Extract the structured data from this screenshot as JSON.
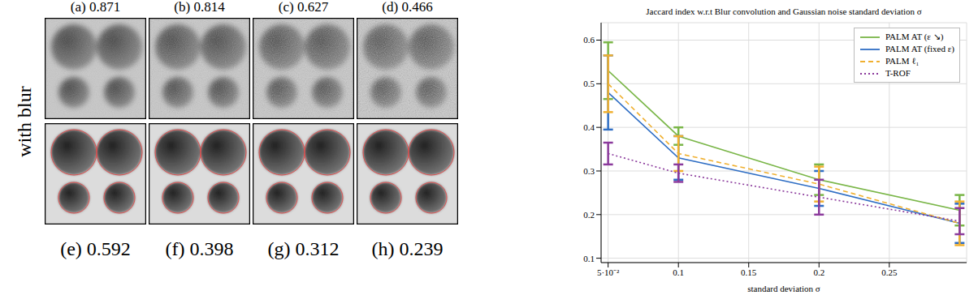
{
  "figure": {
    "top_labels": [
      "(a) 0.871",
      "(b) 0.814",
      "(c) 0.627",
      "(d) 0.466"
    ],
    "row_label": "with blur",
    "bottom_labels": [
      "(e) 0.592",
      "(f) 0.398",
      "(g) 0.312",
      "(h) 0.239"
    ]
  },
  "chart_data": {
    "type": "line",
    "title": "Jaccard index w.r.t Blur convolution and Gaussian noise standard deviation σ",
    "x_label": "standard deviation σ",
    "x": [
      0.05,
      0.1,
      0.2,
      0.3
    ],
    "xlim": [
      0.045,
      0.305
    ],
    "xticks": [
      {
        "value": 0.05,
        "label": "5·10⁻²"
      },
      0.1,
      0.15,
      0.2,
      0.25
    ],
    "ylim": [
      0.09,
      0.64
    ],
    "yticks": [
      0.1,
      0.2,
      0.3,
      0.4,
      0.5,
      0.6
    ],
    "grid": true,
    "legend": "upper right",
    "series": [
      {
        "name": "PALM AT (ε ↘)",
        "color": "#7ab648",
        "line_style": "solid",
        "values": [
          0.53,
          0.38,
          0.28,
          0.21
        ],
        "errors": [
          0.065,
          0.02,
          0.035,
          0.035
        ]
      },
      {
        "name": "PALM AT (fixed ε)",
        "color": "#2f6ec4",
        "line_style": "solid",
        "values": [
          0.48,
          0.33,
          0.26,
          0.18
        ],
        "errors": [
          0.085,
          0.05,
          0.04,
          0.045
        ]
      },
      {
        "name": "PALM ℓ₁",
        "color": "#f0b030",
        "line_style": "dashed",
        "values": [
          0.5,
          0.34,
          0.27,
          0.18
        ],
        "errors": [
          0.065,
          0.04,
          0.04,
          0.05
        ]
      },
      {
        "name": "T-ROF",
        "color": "#8b3a9c",
        "line_style": "dotted",
        "values": [
          0.34,
          0.295,
          0.24,
          0.185
        ],
        "errors": [
          0.025,
          0.02,
          0.04,
          0.03
        ]
      }
    ]
  }
}
